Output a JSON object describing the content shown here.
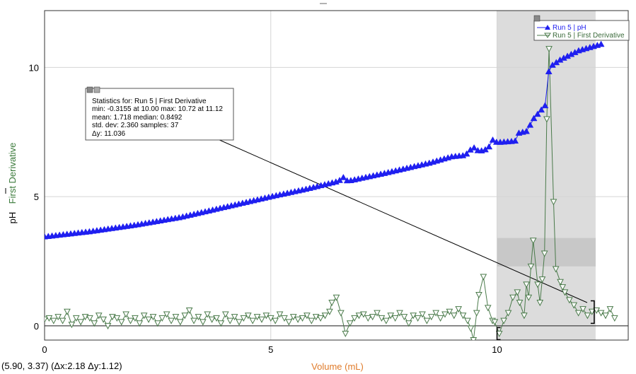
{
  "chart_data": {
    "type": "scatter",
    "x_label": "Volume (mL)",
    "y_label_primary": "pH",
    "y_label_secondary": "First Derivative",
    "x_range": [
      0,
      12.9
    ],
    "y_range": [
      -0.55,
      12.2
    ],
    "x_ticks": [
      0,
      5,
      10
    ],
    "y_ticks": [
      0,
      5,
      10
    ],
    "grid": true,
    "colors": {
      "ph": "#1f1ff0",
      "derivative": "#4a7a4a",
      "x_label": "#e07b2a",
      "y_label_secondary": "#3a7a3a",
      "selection": "#dcdcdc",
      "band": "#c8c8c8"
    },
    "selection_range": [
      10.0,
      12.18
    ],
    "stats_band_y": [
      2.3,
      3.4
    ],
    "legend": {
      "items": [
        {
          "label": "Run 5 | pH",
          "marker": "filled-triangle-up"
        },
        {
          "label": "Run 5 | First Derivative",
          "marker": "open-triangle-down"
        }
      ]
    },
    "stats_box": {
      "lines": [
        "Statistics for: Run 5 | First Derivative",
        "min: -0.3155 at 10.00 max: 10.72 at 11.12",
        "mean: 1.718 median: 0.8492",
        "std. dev: 2.360 samples: 37",
        "Δy: 11.036"
      ]
    },
    "coordinate_readout": "(5.90, 3.37) (Δx:2.18 Δy:1.12)",
    "series": [
      {
        "name": "Run 5 | pH",
        "anchors": [
          [
            0.0,
            3.45
          ],
          [
            1.0,
            3.65
          ],
          [
            2.0,
            3.9
          ],
          [
            3.0,
            4.2
          ],
          [
            4.0,
            4.6
          ],
          [
            5.0,
            5.0
          ],
          [
            5.8,
            5.3
          ],
          [
            6.5,
            5.6
          ],
          [
            6.6,
            5.75
          ],
          [
            6.7,
            5.6
          ],
          [
            7.5,
            5.9
          ],
          [
            8.5,
            6.3
          ],
          [
            9.0,
            6.55
          ],
          [
            9.3,
            6.6
          ],
          [
            9.4,
            6.8
          ],
          [
            9.5,
            6.9
          ],
          [
            9.6,
            6.75
          ],
          [
            9.8,
            6.85
          ],
          [
            9.9,
            7.2
          ],
          [
            10.0,
            7.1
          ],
          [
            10.4,
            7.15
          ],
          [
            10.45,
            7.45
          ],
          [
            10.7,
            7.55
          ],
          [
            10.75,
            7.9
          ],
          [
            10.9,
            8.2
          ],
          [
            11.1,
            8.6
          ],
          [
            11.15,
            10.0
          ],
          [
            11.4,
            10.3
          ],
          [
            11.8,
            10.65
          ],
          [
            12.3,
            10.9
          ]
        ],
        "points_count": 150
      },
      {
        "name": "Run 5 | First Derivative",
        "points": [
          [
            0.0,
            0.25
          ],
          [
            0.1,
            0.3
          ],
          [
            0.2,
            0.2
          ],
          [
            0.3,
            0.35
          ],
          [
            0.4,
            0.2
          ],
          [
            0.5,
            0.55
          ],
          [
            0.6,
            0.05
          ],
          [
            0.7,
            0.3
          ],
          [
            0.8,
            0.15
          ],
          [
            0.9,
            0.35
          ],
          [
            1.0,
            0.3
          ],
          [
            1.1,
            0.1
          ],
          [
            1.2,
            0.4
          ],
          [
            1.3,
            0.25
          ],
          [
            1.4,
            0.0
          ],
          [
            1.5,
            0.35
          ],
          [
            1.6,
            0.3
          ],
          [
            1.7,
            0.15
          ],
          [
            1.8,
            0.45
          ],
          [
            1.9,
            0.2
          ],
          [
            2.0,
            0.3
          ],
          [
            2.1,
            0.1
          ],
          [
            2.2,
            0.4
          ],
          [
            2.3,
            0.25
          ],
          [
            2.4,
            0.35
          ],
          [
            2.5,
            0.1
          ],
          [
            2.6,
            0.3
          ],
          [
            2.7,
            0.45
          ],
          [
            2.8,
            0.2
          ],
          [
            2.9,
            0.35
          ],
          [
            3.0,
            0.15
          ],
          [
            3.1,
            0.4
          ],
          [
            3.2,
            0.6
          ],
          [
            3.3,
            0.2
          ],
          [
            3.4,
            0.35
          ],
          [
            3.5,
            0.15
          ],
          [
            3.6,
            0.45
          ],
          [
            3.7,
            0.25
          ],
          [
            3.8,
            0.3
          ],
          [
            3.9,
            0.1
          ],
          [
            4.0,
            0.45
          ],
          [
            4.1,
            0.2
          ],
          [
            4.2,
            0.35
          ],
          [
            4.3,
            0.15
          ],
          [
            4.4,
            0.3
          ],
          [
            4.5,
            0.4
          ],
          [
            4.6,
            0.2
          ],
          [
            4.7,
            0.35
          ],
          [
            4.8,
            0.25
          ],
          [
            4.9,
            0.4
          ],
          [
            5.0,
            0.3
          ],
          [
            5.1,
            0.2
          ],
          [
            5.2,
            0.45
          ],
          [
            5.3,
            0.3
          ],
          [
            5.4,
            0.15
          ],
          [
            5.5,
            0.35
          ],
          [
            5.6,
            0.25
          ],
          [
            5.7,
            0.3
          ],
          [
            5.8,
            0.4
          ],
          [
            5.9,
            0.2
          ],
          [
            6.0,
            0.35
          ],
          [
            6.1,
            0.3
          ],
          [
            6.2,
            0.4
          ],
          [
            6.3,
            0.55
          ],
          [
            6.35,
            0.9
          ],
          [
            6.45,
            1.1
          ],
          [
            6.55,
            0.5
          ],
          [
            6.65,
            -0.3
          ],
          [
            6.75,
            0.1
          ],
          [
            6.85,
            0.3
          ],
          [
            6.95,
            0.4
          ],
          [
            7.05,
            0.45
          ],
          [
            7.15,
            0.3
          ],
          [
            7.25,
            0.35
          ],
          [
            7.35,
            0.5
          ],
          [
            7.45,
            0.3
          ],
          [
            7.55,
            0.2
          ],
          [
            7.65,
            0.4
          ],
          [
            7.75,
            0.3
          ],
          [
            7.85,
            0.5
          ],
          [
            7.95,
            0.35
          ],
          [
            8.05,
            0.1
          ],
          [
            8.15,
            0.4
          ],
          [
            8.25,
            0.3
          ],
          [
            8.35,
            0.45
          ],
          [
            8.45,
            0.2
          ],
          [
            8.55,
            0.35
          ],
          [
            8.65,
            0.5
          ],
          [
            8.75,
            0.3
          ],
          [
            8.85,
            0.45
          ],
          [
            8.95,
            0.55
          ],
          [
            9.05,
            0.4
          ],
          [
            9.15,
            0.65
          ],
          [
            9.25,
            0.4
          ],
          [
            9.35,
            0.2
          ],
          [
            9.42,
            -0.1
          ],
          [
            9.48,
            -0.55
          ],
          [
            9.55,
            0.5
          ],
          [
            9.6,
            1.2
          ],
          [
            9.7,
            1.9
          ],
          [
            9.8,
            0.7
          ],
          [
            9.9,
            0.2
          ],
          [
            9.95,
            0.15
          ],
          [
            10.05,
            -0.3
          ],
          [
            10.15,
            0.2
          ],
          [
            10.25,
            0.5
          ],
          [
            10.35,
            1.1
          ],
          [
            10.45,
            1.3
          ],
          [
            10.5,
            0.9
          ],
          [
            10.6,
            0.4
          ],
          [
            10.65,
            1.6
          ],
          [
            10.7,
            1.1
          ],
          [
            10.75,
            2.3
          ],
          [
            10.8,
            3.3
          ],
          [
            10.9,
            1.6
          ],
          [
            10.95,
            0.9
          ],
          [
            11.0,
            1.8
          ],
          [
            11.05,
            2.8
          ],
          [
            11.1,
            8.0
          ],
          [
            11.15,
            10.72
          ],
          [
            11.25,
            4.8
          ],
          [
            11.3,
            2.2
          ],
          [
            11.4,
            1.7
          ],
          [
            11.45,
            1.5
          ],
          [
            11.5,
            1.3
          ],
          [
            11.6,
            1.0
          ],
          [
            11.7,
            0.8
          ],
          [
            11.8,
            0.5
          ],
          [
            11.9,
            0.65
          ],
          [
            12.0,
            0.4
          ],
          [
            12.1,
            0.55
          ],
          [
            12.2,
            0.6
          ],
          [
            12.3,
            0.5
          ],
          [
            12.4,
            0.4
          ],
          [
            12.5,
            0.65
          ],
          [
            12.6,
            0.3
          ]
        ]
      }
    ]
  }
}
